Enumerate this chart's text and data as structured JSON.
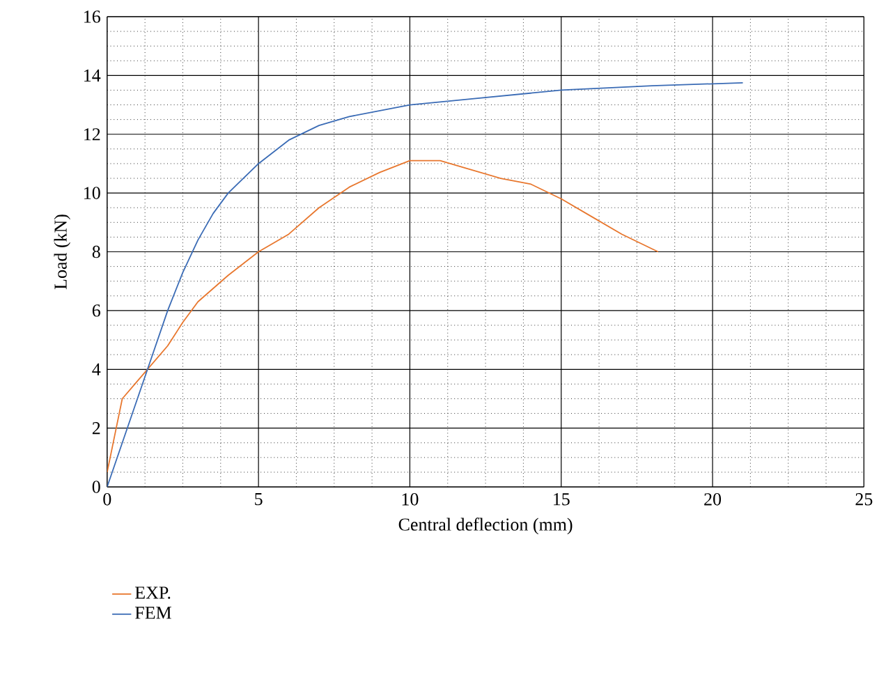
{
  "chart_data": {
    "type": "line",
    "xlabel": "Central deflection (mm)",
    "ylabel": "Load (kN)",
    "xlim": [
      0,
      25
    ],
    "ylim": [
      0,
      16
    ],
    "xticks": [
      0,
      5,
      10,
      15,
      20,
      25
    ],
    "yticks": [
      0,
      2,
      4,
      6,
      8,
      10,
      12,
      14,
      16
    ],
    "grid": true,
    "legend": "bottom left",
    "series": [
      {
        "name": "EXP.",
        "color": "#e8772e",
        "x": [
          0,
          0.3,
          0.5,
          1,
          1.5,
          2,
          2.5,
          3,
          4,
          5,
          6,
          7,
          8,
          9,
          10,
          11,
          12,
          13,
          14,
          15,
          16,
          17,
          18.2
        ],
        "values": [
          0.5,
          2,
          3,
          3.6,
          4.2,
          4.8,
          5.6,
          6.3,
          7.2,
          8,
          8.6,
          9.5,
          10.2,
          10.7,
          11.1,
          11.1,
          10.8,
          10.5,
          10.3,
          9.8,
          9.2,
          8.6,
          8.0
        ]
      },
      {
        "name": "FEM",
        "color": "#3a6bb5",
        "x": [
          0,
          0.5,
          1,
          1.5,
          2,
          2.5,
          3,
          3.5,
          4,
          5,
          6,
          7,
          8,
          10,
          12,
          15,
          18,
          21
        ],
        "values": [
          0,
          1.5,
          3,
          4.5,
          6,
          7.3,
          8.4,
          9.3,
          10,
          11,
          11.8,
          12.3,
          12.6,
          13,
          13.2,
          13.5,
          13.65,
          13.75
        ]
      }
    ]
  }
}
